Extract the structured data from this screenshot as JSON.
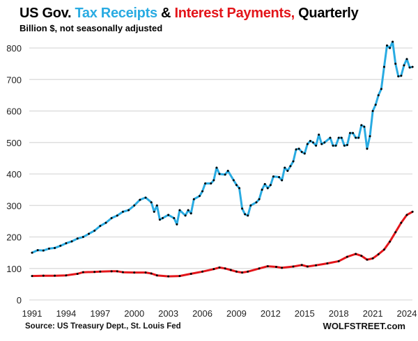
{
  "chart_data": {
    "type": "line",
    "title_parts": [
      {
        "text": "US Gov. ",
        "color": "#000000"
      },
      {
        "text": "Tax Receipts",
        "color": "#29abe2"
      },
      {
        "text": " & ",
        "color": "#000000"
      },
      {
        "text": "Interest Payments,",
        "color": "#e3151a"
      },
      {
        "text": " Quarterly",
        "color": "#000000"
      }
    ],
    "subtitle": "Billion $, not seasonally adjusted",
    "source": "Source: US Treasury Dept., St. Louis Fed",
    "brand": "WOLFSTREET.com",
    "xlim": [
      1991,
      2024.5
    ],
    "ylim": [
      0,
      800
    ],
    "grid": true,
    "x_ticks": [
      "1991",
      "1994",
      "1997",
      "2000",
      "2003",
      "2006",
      "2009",
      "2012",
      "2015",
      "2018",
      "2021",
      "2024"
    ],
    "y_ticks": [
      "0",
      "100",
      "200",
      "300",
      "400",
      "500",
      "600",
      "700",
      "800"
    ],
    "series": [
      {
        "name": "Tax Receipts",
        "color": "#29abe2",
        "marker_color": "#000000",
        "x": [
          1991,
          1991.5,
          1992,
          1992.5,
          1993,
          1993.5,
          1994,
          1994.5,
          1995,
          1995.5,
          1996,
          1996.5,
          1997,
          1997.5,
          1998,
          1998.5,
          1999,
          1999.5,
          2000,
          2000.5,
          2001,
          2001.5,
          2001.75,
          2002,
          2002.25,
          2002.5,
          2003,
          2003.5,
          2003.75,
          2004,
          2004.5,
          2004.75,
          2005,
          2005.25,
          2005.75,
          2006,
          2006.25,
          2006.75,
          2007,
          2007.25,
          2007.5,
          2008,
          2008.25,
          2008.75,
          2009,
          2009.25,
          2009.5,
          2009.75,
          2010,
          2010.25,
          2010.75,
          2011,
          2011.25,
          2011.5,
          2011.75,
          2012,
          2012.25,
          2012.75,
          2013,
          2013.25,
          2013.5,
          2013.75,
          2014,
          2014.25,
          2014.5,
          2014.75,
          2015,
          2015.25,
          2015.5,
          2015.75,
          2016,
          2016.25,
          2016.5,
          2016.75,
          2017.25,
          2017.5,
          2017.75,
          2018,
          2018.25,
          2018.5,
          2018.75,
          2019,
          2019.25,
          2019.5,
          2019.75,
          2020,
          2020.25,
          2020.5,
          2020.75,
          2021,
          2021.25,
          2021.5,
          2021.75,
          2022,
          2022.25,
          2022.5,
          2022.75,
          2023,
          2023.25,
          2023.5,
          2023.75,
          2024,
          2024.25,
          2024.5
        ],
        "values": [
          150,
          158,
          157,
          163,
          165,
          172,
          180,
          186,
          195,
          200,
          210,
          220,
          235,
          245,
          260,
          268,
          280,
          285,
          300,
          318,
          325,
          310,
          280,
          300,
          255,
          260,
          270,
          260,
          240,
          285,
          268,
          285,
          275,
          320,
          330,
          345,
          370,
          370,
          380,
          420,
          400,
          398,
          410,
          380,
          365,
          355,
          290,
          272,
          268,
          300,
          310,
          320,
          350,
          368,
          355,
          365,
          392,
          390,
          380,
          420,
          410,
          425,
          440,
          478,
          480,
          470,
          465,
          495,
          505,
          500,
          490,
          525,
          495,
          500,
          515,
          490,
          490,
          515,
          515,
          490,
          492,
          530,
          530,
          515,
          515,
          555,
          550,
          480,
          520,
          600,
          620,
          650,
          670,
          740,
          808,
          800,
          820,
          750,
          710,
          712,
          745,
          765,
          738,
          740
        ]
      },
      {
        "name": "Interest Payments",
        "color": "#e3151a",
        "marker_color": "#000000",
        "x": [
          1991,
          1992,
          1993,
          1994,
          1995,
          1995.5,
          1996.5,
          1997,
          1998,
          1998.5,
          1999,
          2000,
          2001,
          2001.5,
          2002,
          2003,
          2004,
          2005,
          2006,
          2007,
          2007.5,
          2008,
          2008.5,
          2009,
          2009.5,
          2010,
          2011,
          2011.75,
          2012.5,
          2013,
          2014,
          2014.75,
          2015.25,
          2016,
          2017,
          2018,
          2018.75,
          2019.5,
          2020,
          2020.5,
          2021,
          2021.5,
          2022,
          2022.5,
          2023,
          2023.5,
          2024,
          2024.5
        ],
        "values": [
          76,
          77,
          77,
          78,
          83,
          88,
          89,
          90,
          91,
          91,
          88,
          87,
          87,
          84,
          78,
          75,
          76,
          83,
          90,
          98,
          103,
          100,
          95,
          90,
          87,
          90,
          100,
          107,
          105,
          102,
          106,
          111,
          106,
          110,
          116,
          123,
          137,
          146,
          140,
          128,
          132,
          145,
          160,
          185,
          215,
          245,
          270,
          280
        ]
      }
    ]
  }
}
